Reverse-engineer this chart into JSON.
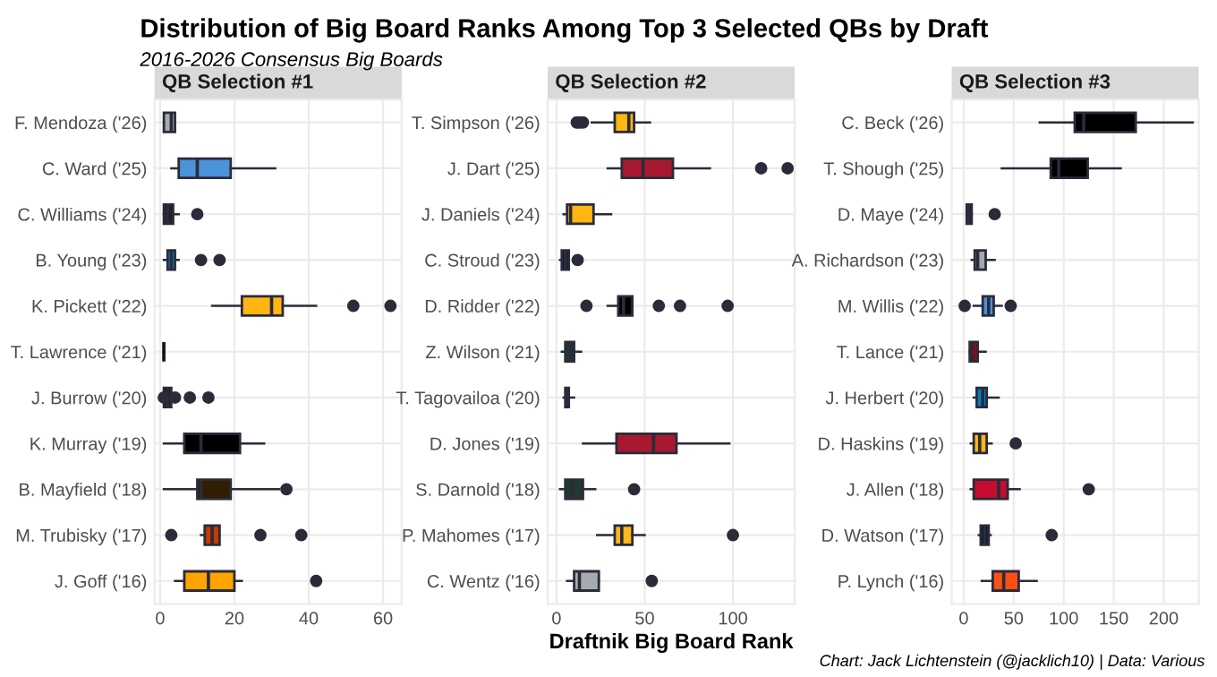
{
  "chart_data": [
    {
      "type": "box",
      "orientation": "horizontal",
      "title": "QB Selection #1",
      "grid": true,
      "annotations": [
        "Distribution of Big Board Ranks Among Top 3 Selected QBs by Draft",
        "2016-2026 Consensus Big Boards"
      ],
      "categories": [
        "F. Mendoza ('26)",
        "C. Ward ('25)",
        "C. Williams ('24)",
        "B. Young ('23)",
        "K. Pickett ('22)",
        "T. Lawrence ('21)",
        "J. Burrow ('20)",
        "K. Murray ('19)",
        "B. Mayfield ('18)",
        "M. Trubisky ('17)",
        "J. Goff ('16)"
      ],
      "colors": [
        "#a5acaf",
        "#4b92db",
        "#2a1b2a",
        "#0085ca",
        "#ffb612",
        "#101820",
        "#101820",
        "#000000",
        "#311d00",
        "#c83803",
        "#ffa300"
      ],
      "boxes": [
        {
          "low": 1,
          "q1": 1,
          "median": 3,
          "q3": 4,
          "high": 4
        },
        {
          "low": 3,
          "q1": 5,
          "median": 10,
          "q3": 19,
          "high": 31
        },
        {
          "low": 1,
          "q1": 1,
          "median": 2,
          "q3": 3.5,
          "high": 5,
          "outliers": [
            10
          ]
        },
        {
          "low": 1,
          "q1": 2,
          "median": 3,
          "q3": 4,
          "high": 5,
          "outliers": [
            11,
            16
          ]
        },
        {
          "low": 14,
          "q1": 22,
          "median": 30,
          "q3": 33,
          "high": 42,
          "outliers": [
            52,
            62
          ]
        },
        {
          "low": 1,
          "q1": 1,
          "median": 1,
          "q3": 1,
          "high": 1
        },
        {
          "low": 1,
          "q1": 1,
          "median": 2,
          "q3": 3,
          "high": 3,
          "outliers": [
            1,
            4,
            8,
            13
          ]
        },
        {
          "low": 1,
          "q1": 6.5,
          "median": 11,
          "q3": 21.5,
          "high": 28
        },
        {
          "low": 1,
          "q1": 10,
          "median": 11,
          "q3": 19,
          "high": 32,
          "outliers": [
            34
          ]
        },
        {
          "low": 11,
          "q1": 12,
          "median": 14,
          "q3": 16,
          "high": 16,
          "outliers": [
            3,
            27,
            38
          ]
        },
        {
          "low": 4,
          "q1": 6.5,
          "median": 13,
          "q3": 20,
          "high": 22,
          "outliers": [
            42
          ]
        }
      ],
      "xlim": [
        -1.5,
        65
      ],
      "xticks": [
        0,
        20,
        40,
        60
      ]
    },
    {
      "type": "box",
      "orientation": "horizontal",
      "title": "QB Selection #2",
      "xlabel": "Draftnik Big Board Rank",
      "grid": true,
      "categories": [
        "T. Simpson ('26)",
        "J. Dart ('25)",
        "J. Daniels ('24)",
        "C. Stroud ('23)",
        "D. Ridder ('22)",
        "Z. Wilson ('21)",
        "T. Tagovailoa ('20)",
        "D. Jones ('19)",
        "S. Darnold ('18)",
        "P. Mahomes ('17)",
        "C. Wentz ('16)"
      ],
      "colors": [
        "#ffb612",
        "#a71930",
        "#ffb612",
        "#03202f",
        "#000000",
        "#1e3a32",
        "#008e97",
        "#a71930",
        "#1f3a30",
        "#ffb81c",
        "#a5acaf"
      ],
      "boxes": [
        {
          "low": 20,
          "q1": 33,
          "median": 41,
          "q3": 44,
          "high": 53,
          "outliers": [
            11.5,
            13,
            15
          ]
        },
        {
          "low": 29,
          "q1": 37,
          "median": 49,
          "q3": 66,
          "high": 87,
          "outliers": [
            116,
            131
          ]
        },
        {
          "low": 4,
          "q1": 6,
          "median": 8,
          "q3": 21,
          "high": 31
        },
        {
          "low": 2,
          "q1": 3,
          "median": 5,
          "q3": 7,
          "high": 7,
          "outliers": [
            12
          ]
        },
        {
          "low": 29,
          "q1": 35,
          "median": 38,
          "q3": 43,
          "high": 43,
          "outliers": [
            17,
            58,
            70,
            97
          ]
        },
        {
          "low": 3,
          "q1": 5,
          "median": 8,
          "q3": 10,
          "high": 14
        },
        {
          "low": 4,
          "q1": 5,
          "median": 6,
          "q3": 7,
          "high": 10
        },
        {
          "low": 15,
          "q1": 34,
          "median": 55,
          "q3": 68,
          "high": 98
        },
        {
          "low": 2,
          "q1": 5,
          "median": 9,
          "q3": 15,
          "high": 22,
          "outliers": [
            44
          ]
        },
        {
          "low": 23,
          "q1": 33,
          "median": 37,
          "q3": 43,
          "high": 50,
          "outliers": [
            100
          ]
        },
        {
          "low": 6,
          "q1": 10,
          "median": 13,
          "q3": 24,
          "high": 24,
          "outliers": [
            54
          ]
        }
      ],
      "xlim": [
        -5,
        135
      ],
      "xticks": [
        0,
        50,
        100
      ]
    },
    {
      "type": "box",
      "orientation": "horizontal",
      "title": "QB Selection #3",
      "grid": true,
      "annotations": [
        "Chart: Jack Lichtenstein (@jacklich10) | Data: Various"
      ],
      "categories": [
        "C. Beck ('26)",
        "T. Shough ('25)",
        "D. Maye ('24)",
        "A. Richardson ('23)",
        "M. Willis ('22)",
        "T. Lance ('21)",
        "J. Herbert ('20)",
        "D. Haskins ('19)",
        "J. Allen ('18)",
        "D. Watson ('17)",
        "P. Lynch ('16)"
      ],
      "colors": [
        "#000000",
        "#000000",
        "#002244",
        "#a2aaad",
        "#4b92db",
        "#aa0000",
        "#0080c6",
        "#ffb612",
        "#c60c30",
        "#03202f",
        "#fb4f14"
      ],
      "boxes": [
        {
          "low": 76,
          "q1": 111,
          "median": 120,
          "q3": 172,
          "high": 229
        },
        {
          "low": 38,
          "q1": 87,
          "median": 95,
          "q3": 124,
          "high": 157
        },
        {
          "low": 3,
          "q1": 3,
          "median": 5,
          "q3": 8,
          "high": 8,
          "outliers": [
            31
          ]
        },
        {
          "low": 8,
          "q1": 11,
          "median": 14,
          "q3": 22,
          "high": 31
        },
        {
          "low": 10,
          "q1": 19,
          "median": 25,
          "q3": 30,
          "high": 38,
          "outliers": [
            1,
            47
          ]
        },
        {
          "low": 6,
          "q1": 6,
          "median": 9,
          "q3": 14,
          "high": 22
        },
        {
          "low": 10,
          "q1": 13,
          "median": 19,
          "q3": 23,
          "high": 35
        },
        {
          "low": 7,
          "q1": 10,
          "median": 16,
          "q3": 23,
          "high": 28,
          "outliers": [
            52
          ]
        },
        {
          "low": 7,
          "q1": 10,
          "median": 35,
          "q3": 44,
          "high": 56,
          "outliers": [
            125
          ]
        },
        {
          "low": 15,
          "q1": 17,
          "median": 21,
          "q3": 25,
          "high": 27,
          "outliers": [
            88
          ]
        },
        {
          "low": 18,
          "q1": 29,
          "median": 40,
          "q3": 55,
          "high": 73
        }
      ],
      "xlim": [
        -12,
        235
      ],
      "xticks": [
        0,
        50,
        100,
        150,
        200
      ]
    }
  ]
}
